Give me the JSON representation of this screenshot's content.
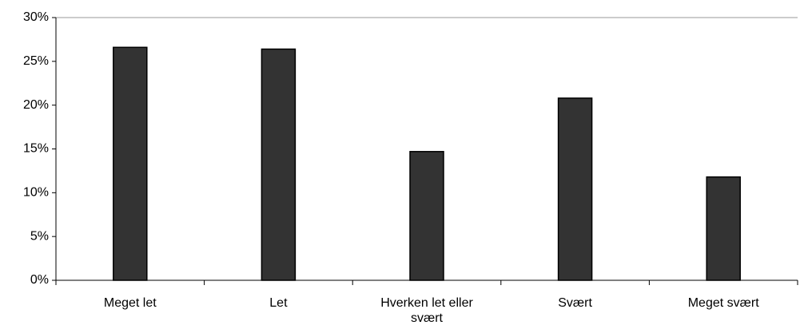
{
  "chart_data": {
    "type": "bar",
    "categories": [
      "Meget let",
      "Let",
      "Hverken let eller svært",
      "Svært",
      "Meget svært"
    ],
    "values": [
      26.6,
      26.4,
      14.7,
      20.8,
      11.8
    ],
    "color": "#333333",
    "ylim": [
      0,
      30
    ],
    "yticks": [
      {
        "value": 0,
        "label": "0%"
      },
      {
        "value": 5,
        "label": "5%"
      },
      {
        "value": 10,
        "label": "10%"
      },
      {
        "value": 15,
        "label": "15%"
      },
      {
        "value": 20,
        "label": "20%"
      },
      {
        "value": 25,
        "label": "25%"
      },
      {
        "value": 30,
        "label": "30%"
      }
    ]
  }
}
